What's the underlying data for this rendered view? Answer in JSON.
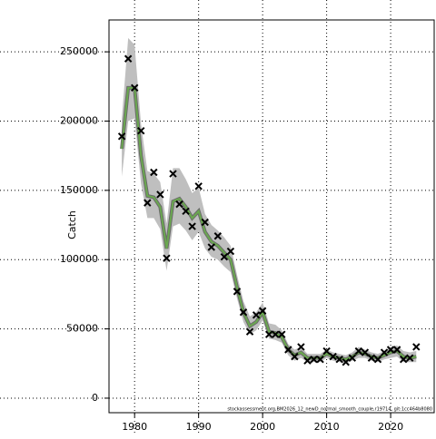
{
  "chart_data": {
    "type": "line",
    "y_label": "Catch",
    "footnote": "stockassessment.org,BM2026_12_newD_normal_smooth_couple,r19714, git:1cc464b8080",
    "x": [
      1978,
      1979,
      1980,
      1981,
      1982,
      1983,
      1984,
      1985,
      1986,
      1987,
      1988,
      1989,
      1990,
      1991,
      1992,
      1993,
      1994,
      1995,
      1996,
      1997,
      1998,
      1999,
      2000,
      2001,
      2002,
      2003,
      2004,
      2005,
      2006,
      2007,
      2008,
      2009,
      2010,
      2011,
      2012,
      2013,
      2014,
      2015,
      2016,
      2017,
      2018,
      2019,
      2020,
      2021,
      2022,
      2023,
      2024
    ],
    "series": [
      {
        "color": "#6aa84f",
        "values": [
          180000,
          224000,
          224000,
          175000,
          146000,
          145000,
          138000,
          108000,
          142000,
          144000,
          138000,
          130000,
          135000,
          120000,
          113000,
          110000,
          105000,
          100000,
          80000,
          62000,
          52000,
          55000,
          62000,
          48000,
          47000,
          44000,
          35000,
          31000,
          33000,
          29000,
          29000,
          29000,
          32000,
          30000,
          29000,
          28000,
          30000,
          33000,
          32000,
          30000,
          29000,
          31000,
          33000,
          34000,
          30000,
          29000,
          30000
        ],
        "lower": [
          160000,
          200000,
          202000,
          155000,
          130000,
          130000,
          122000,
          92000,
          124000,
          126000,
          121000,
          114000,
          120000,
          108000,
          102000,
          100000,
          95000,
          91000,
          72000,
          55000,
          46000,
          49000,
          56000,
          43000,
          42000,
          40000,
          31000,
          27000,
          29000,
          26000,
          26000,
          26000,
          29000,
          27000,
          26000,
          25000,
          27000,
          29000,
          29000,
          27000,
          26000,
          28000,
          29000,
          30000,
          26000,
          26000,
          26000
        ],
        "upper": [
          202000,
          260000,
          255000,
          198000,
          164000,
          162000,
          156000,
          126000,
          166000,
          166000,
          158000,
          148000,
          152000,
          133000,
          125000,
          121000,
          116000,
          110000,
          89000,
          70000,
          59000,
          62000,
          69000,
          54000,
          53000,
          49000,
          39000,
          35000,
          37000,
          32000,
          32000,
          32000,
          35000,
          33000,
          32000,
          31000,
          33000,
          37000,
          35000,
          33000,
          32000,
          34000,
          37000,
          38000,
          34000,
          33000,
          34000
        ]
      }
    ],
    "points": {
      "values": [
        189000,
        245000,
        224000,
        193000,
        141000,
        163000,
        147000,
        101000,
        162000,
        140000,
        135000,
        124000,
        153000,
        127000,
        109000,
        117000,
        102000,
        106000,
        77000,
        62000,
        48000,
        60000,
        63000,
        46000,
        46000,
        46000,
        35000,
        30000,
        37000,
        27000,
        28000,
        28000,
        34000,
        30000,
        28000,
        26000,
        29000,
        34000,
        33000,
        29000,
        28000,
        33000,
        35000,
        35000,
        28000,
        29000,
        37000
      ]
    },
    "xlim": [
      1976,
      2026.8
    ],
    "ylim": [
      -10500,
      273000
    ],
    "xticks": [
      1980,
      1990,
      2000,
      2010,
      2020
    ],
    "yticks": [
      0,
      50000,
      100000,
      150000,
      200000,
      250000
    ],
    "grid": true
  }
}
